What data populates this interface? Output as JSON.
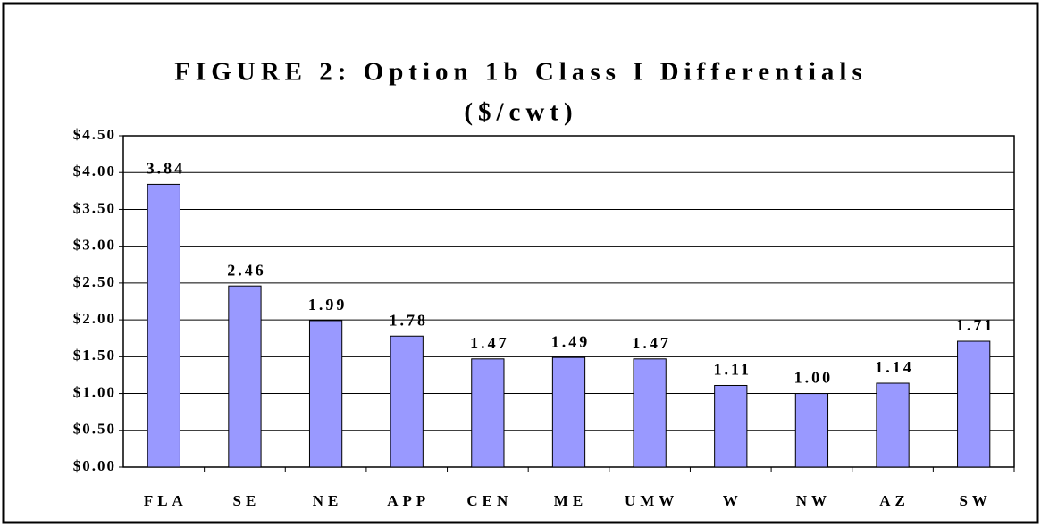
{
  "chart_data": {
    "type": "bar",
    "title": "FIGURE 2: Option 1b Class I Differentials",
    "subtitle": "($/cwt)",
    "categories": [
      "FLA",
      "SE",
      "NE",
      "APP",
      "CEN",
      "ME",
      "UMW",
      "W",
      "NW",
      "AZ",
      "SW"
    ],
    "values": [
      3.84,
      2.46,
      1.99,
      1.78,
      1.47,
      1.49,
      1.47,
      1.11,
      1.0,
      1.14,
      1.71
    ],
    "value_labels": [
      "3.84",
      "2.46",
      "1.99",
      "1.78",
      "1.47",
      "1.49",
      "1.47",
      "1.11",
      "1.00",
      "1.14",
      "1.71"
    ],
    "color": "#9999ff",
    "ylim": [
      0,
      4.5
    ],
    "yticks": [
      {
        "value": 0,
        "label": "$0.00"
      },
      {
        "value": 0.5,
        "label": "$0.50"
      },
      {
        "value": 1,
        "label": "$1.00"
      },
      {
        "value": 1.5,
        "label": "$1.50"
      },
      {
        "value": 2,
        "label": "$2.00"
      },
      {
        "value": 2.5,
        "label": "$2.50"
      },
      {
        "value": 3,
        "label": "$3.00"
      },
      {
        "value": 3.5,
        "label": "$3.50"
      },
      {
        "value": 4,
        "label": "$4.00"
      },
      {
        "value": 4.5,
        "label": "$4.50"
      }
    ],
    "grid": true
  }
}
